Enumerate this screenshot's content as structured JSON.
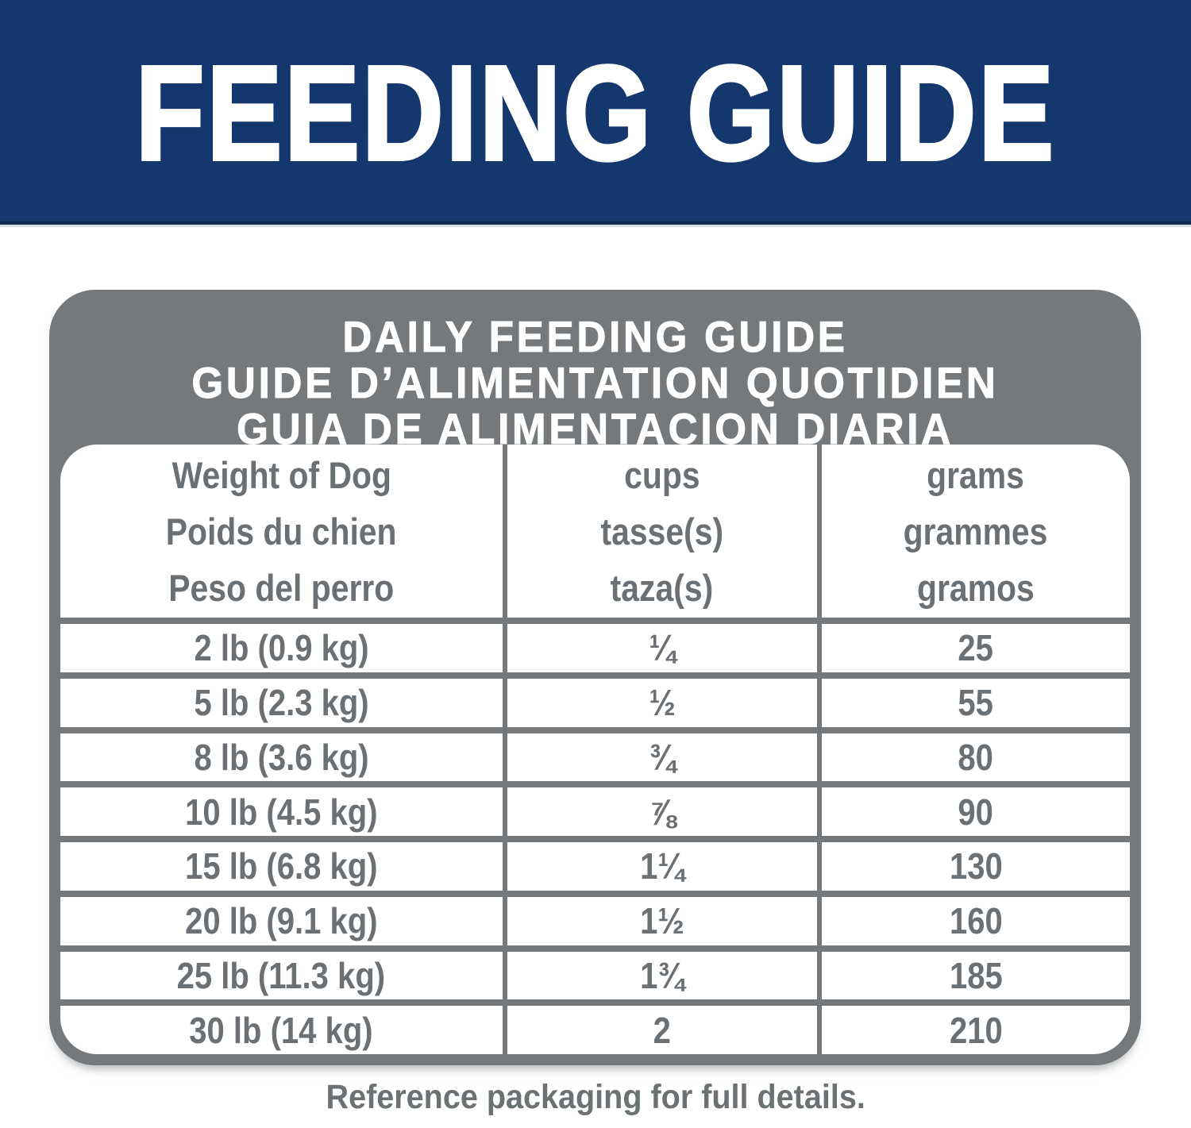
{
  "banner": {
    "title": "FEEDING GUIDE"
  },
  "card": {
    "title_lines": [
      "DAILY FEEDING GUIDE",
      "GUIDE D’ALIMENTATION QUOTIDIEN",
      "GUIA DE ALIMENTACION DIARIA"
    ]
  },
  "table": {
    "columns": [
      {
        "id": "weight",
        "lines": [
          "Weight of Dog",
          "Poids du chien",
          "Peso del perro"
        ]
      },
      {
        "id": "cups",
        "lines": [
          "cups",
          "tasse(s)",
          "taza(s)"
        ]
      },
      {
        "id": "grams",
        "lines": [
          "grams",
          "grammes",
          "gramos"
        ]
      }
    ],
    "rows": [
      {
        "weight": "2 lb (0.9 kg)",
        "cups": "¼",
        "grams": "25"
      },
      {
        "weight": "5 lb (2.3 kg)",
        "cups": "½",
        "grams": "55"
      },
      {
        "weight": "8 lb (3.6 kg)",
        "cups": "¾",
        "grams": "80"
      },
      {
        "weight": "10 lb (4.5 kg)",
        "cups": "⅞",
        "grams": "90"
      },
      {
        "weight": "15 lb (6.8 kg)",
        "cups": "1¼",
        "grams": "130"
      },
      {
        "weight": "20 lb (9.1 kg)",
        "cups": "1½",
        "grams": "160"
      },
      {
        "weight": "25 lb (11.3 kg)",
        "cups": "1¾",
        "grams": "185"
      },
      {
        "weight": "30 lb (14 kg)",
        "cups": "2",
        "grams": "210"
      }
    ]
  },
  "footer": {
    "note": "Reference packaging for full details."
  },
  "colors": {
    "banner_navy": "#14386E",
    "banner_edge": "#0D2A52",
    "card_gray": "#75797B",
    "text_gray": "#6B7074",
    "cell_white": "#FFFFFF"
  }
}
